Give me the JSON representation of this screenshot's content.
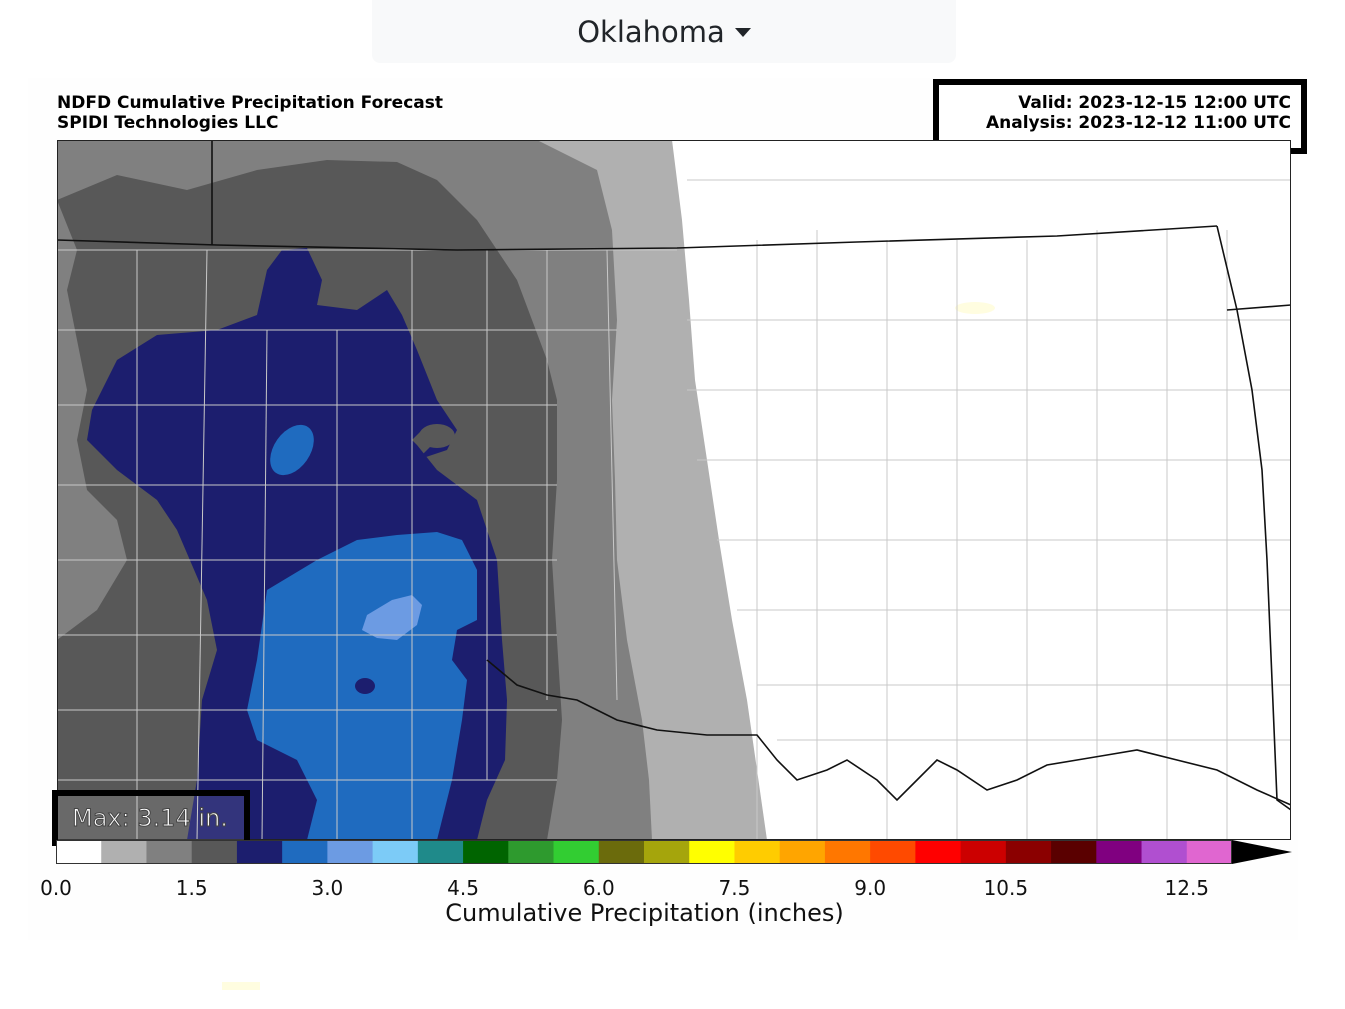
{
  "header": {
    "state": "Oklahoma"
  },
  "figure": {
    "title_line1": "NDFD Cumulative Precipitation Forecast",
    "title_line2": "SPIDI Technologies LLC",
    "valid": "Valid: 2023-12-15 12:00 UTC",
    "analysis": "Analysis: 2023-12-12 11:00 UTC",
    "max_label": "Max: 3.14 in."
  },
  "colorbar": {
    "label": "Cumulative Precipitation (inches)",
    "ticks": [
      "0.0",
      "1.5",
      "3.0",
      "4.5",
      "6.0",
      "7.5",
      "9.0",
      "10.5",
      "12.5"
    ],
    "tick_values": [
      0.0,
      1.5,
      3.0,
      4.5,
      6.0,
      7.5,
      9.0,
      10.5,
      12.5
    ],
    "bin_width": 0.5,
    "colors": [
      "#ffffff",
      "#b0b0b0",
      "#808080",
      "#585858",
      "#1c1e6e",
      "#1f6bbf",
      "#6c9be3",
      "#7ccbf7",
      "#1f8a8a",
      "#006400",
      "#2e9a2e",
      "#32cd32",
      "#6b6b0c",
      "#a5a50c",
      "#ffff00",
      "#ffcc00",
      "#ffa500",
      "#ff7700",
      "#ff4a00",
      "#ff0000",
      "#cc0000",
      "#8b0000",
      "#5a0000",
      "#800080",
      "#b04fd0",
      "#e066d0"
    ],
    "extend_color": "#000000"
  },
  "map": {
    "colors": {
      "c0": "#ffffff",
      "c1": "#b0b0b0",
      "c2": "#808080",
      "c3": "#585858",
      "c4": "#1c1e6e",
      "c5": "#1f6bbf",
      "c6": "#6c9be3"
    }
  }
}
